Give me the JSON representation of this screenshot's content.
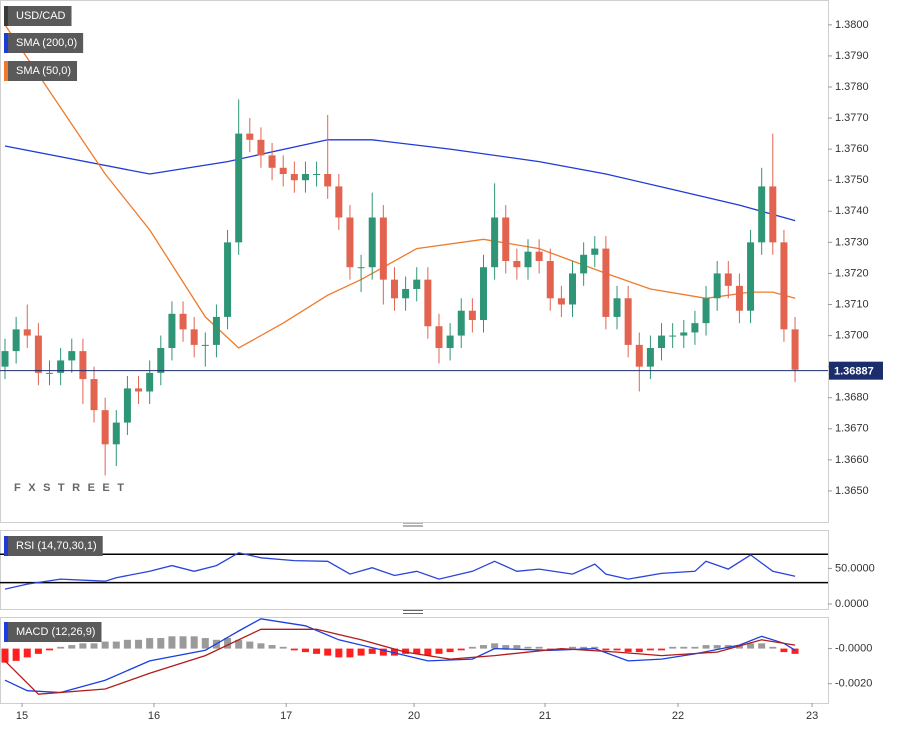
{
  "chart_data": [
    {
      "type": "candlestick",
      "title": "USD/CAD",
      "watermark": "FXSTREET",
      "up_color": "#2e9676",
      "down_color": "#e2634f",
      "xlim": [
        -0.45,
        73.96
      ],
      "ylim": [
        1.364,
        1.3808
      ],
      "yticks": [
        {
          "value": 1.365,
          "label": "1.3650"
        },
        {
          "value": 1.366,
          "label": "1.3660"
        },
        {
          "value": 1.367,
          "label": "1.3670"
        },
        {
          "value": 1.368,
          "label": "1.3680"
        },
        {
          "value": 1.369,
          "label": "1.3690"
        },
        {
          "value": 1.37,
          "label": "1.3700"
        },
        {
          "value": 1.371,
          "label": "1.3710"
        },
        {
          "value": 1.372,
          "label": "1.3720"
        },
        {
          "value": 1.373,
          "label": "1.3730"
        },
        {
          "value": 1.374,
          "label": "1.3740"
        },
        {
          "value": 1.375,
          "label": "1.3750"
        },
        {
          "value": 1.376,
          "label": "1.3760"
        },
        {
          "value": 1.377,
          "label": "1.3770"
        },
        {
          "value": 1.378,
          "label": "1.3780"
        },
        {
          "value": 1.379,
          "label": "1.3790"
        },
        {
          "value": 1.38,
          "label": "1.3800"
        }
      ],
      "last_price": 1.36887,
      "last_price_color": "#1c2d6b",
      "open": [
        1.369,
        1.3695,
        1.3702,
        1.37,
        1.3688,
        1.3688,
        1.3692,
        1.3695,
        1.3686,
        1.3676,
        1.3665,
        1.3672,
        1.3683,
        1.3682,
        1.3688,
        1.3696,
        1.3707,
        1.3702,
        1.3697,
        1.3697,
        1.3706,
        1.373,
        1.3765,
        1.3763,
        1.3758,
        1.3754,
        1.3752,
        1.375,
        1.3752,
        1.3752,
        1.3748,
        1.3738,
        1.3722,
        1.3722,
        1.3738,
        1.3718,
        1.3712,
        1.3715,
        1.3718,
        1.3703,
        1.3696,
        1.37,
        1.3708,
        1.3705,
        1.3722,
        1.3738,
        1.3724,
        1.3722,
        1.3727,
        1.3724,
        1.3712,
        1.371,
        1.372,
        1.3726,
        1.3728,
        1.3706,
        1.3712,
        1.3697,
        1.369,
        1.3696,
        1.37,
        1.37,
        1.3701,
        1.3704,
        1.3712,
        1.372,
        1.3716,
        1.3708,
        1.373,
        1.3748,
        1.373,
        1.3702
      ],
      "high": [
        1.3699,
        1.3706,
        1.371,
        1.3704,
        1.3692,
        1.3696,
        1.3699,
        1.3699,
        1.369,
        1.368,
        1.3676,
        1.3687,
        1.3687,
        1.3692,
        1.37,
        1.3711,
        1.3711,
        1.3706,
        1.3701,
        1.371,
        1.3734,
        1.3776,
        1.377,
        1.3767,
        1.3762,
        1.3758,
        1.3756,
        1.3756,
        1.3756,
        1.3771,
        1.3752,
        1.3742,
        1.3726,
        1.3746,
        1.3742,
        1.3722,
        1.3719,
        1.3722,
        1.3722,
        1.3707,
        1.3704,
        1.3712,
        1.3712,
        1.3726,
        1.3749,
        1.3742,
        1.3728,
        1.3731,
        1.3731,
        1.3728,
        1.3716,
        1.3724,
        1.373,
        1.3732,
        1.3732,
        1.3716,
        1.3716,
        1.3701,
        1.37,
        1.3704,
        1.3704,
        1.3705,
        1.3708,
        1.3716,
        1.3724,
        1.3724,
        1.372,
        1.3734,
        1.3754,
        1.3765,
        1.3734,
        1.3706
      ],
      "low": [
        1.3686,
        1.3691,
        1.3696,
        1.3684,
        1.3684,
        1.3684,
        1.3688,
        1.3678,
        1.3672,
        1.3655,
        1.3658,
        1.3668,
        1.3678,
        1.3678,
        1.3684,
        1.3692,
        1.3698,
        1.3693,
        1.369,
        1.3693,
        1.3702,
        1.3726,
        1.3759,
        1.3754,
        1.375,
        1.3748,
        1.3746,
        1.3746,
        1.3748,
        1.3744,
        1.3734,
        1.3718,
        1.3714,
        1.3718,
        1.371,
        1.3708,
        1.3708,
        1.3711,
        1.3699,
        1.3691,
        1.3692,
        1.3696,
        1.3701,
        1.3701,
        1.3718,
        1.372,
        1.3718,
        1.3718,
        1.372,
        1.3708,
        1.3706,
        1.3706,
        1.3716,
        1.3722,
        1.3702,
        1.3702,
        1.3693,
        1.3682,
        1.3686,
        1.3692,
        1.3696,
        1.3696,
        1.3697,
        1.37,
        1.3708,
        1.3712,
        1.3704,
        1.3704,
        1.3726,
        1.3726,
        1.3698,
        1.3685
      ],
      "close": [
        1.3695,
        1.3702,
        1.37,
        1.3688,
        1.3688,
        1.3692,
        1.3695,
        1.3686,
        1.3676,
        1.3665,
        1.3672,
        1.3683,
        1.3682,
        1.3688,
        1.3696,
        1.3707,
        1.3702,
        1.3697,
        1.3697,
        1.3706,
        1.373,
        1.3765,
        1.3763,
        1.3758,
        1.3754,
        1.3752,
        1.375,
        1.3752,
        1.3752,
        1.3748,
        1.3738,
        1.3722,
        1.3722,
        1.3738,
        1.3718,
        1.3712,
        1.3715,
        1.3718,
        1.3703,
        1.3696,
        1.37,
        1.3708,
        1.3705,
        1.3722,
        1.3738,
        1.3724,
        1.3722,
        1.3727,
        1.3724,
        1.3712,
        1.371,
        1.372,
        1.3726,
        1.3728,
        1.3706,
        1.3712,
        1.3697,
        1.369,
        1.3696,
        1.37,
        1.37,
        1.3701,
        1.3704,
        1.3712,
        1.372,
        1.3716,
        1.3708,
        1.373,
        1.3748,
        1.373,
        1.3702,
        1.3689
      ],
      "series": [
        {
          "name": "SMA (200,0)",
          "color": "#1f3bd6",
          "x": [
            0,
            13,
            20,
            29,
            33,
            40,
            48,
            54,
            60,
            66,
            71
          ],
          "values": [
            1.3761,
            1.3752,
            1.3756,
            1.3763,
            1.3763,
            1.376,
            1.3756,
            1.3752,
            1.3747,
            1.3742,
            1.3737
          ]
        },
        {
          "name": "SMA (50,0)",
          "color": "#ef7a2b",
          "x": [
            0,
            9,
            13,
            18,
            21,
            25,
            29,
            32,
            37,
            43,
            48,
            54,
            58,
            63,
            67,
            69,
            71
          ],
          "values": [
            1.38,
            1.3752,
            1.3734,
            1.3706,
            1.3696,
            1.3704,
            1.3713,
            1.3718,
            1.3728,
            1.3731,
            1.3728,
            1.372,
            1.3715,
            1.3712,
            1.3714,
            1.3714,
            1.3712
          ]
        }
      ]
    },
    {
      "type": "line",
      "title": "RSI (14,70,30,1)",
      "xlim": [
        -0.45,
        73.96
      ],
      "ylim": [
        -7,
        104
      ],
      "yticks": [
        {
          "value": 0,
          "label": "0.0000"
        },
        {
          "value": 50,
          "label": "50.0000"
        }
      ],
      "levels": [
        70,
        30
      ],
      "series": [
        {
          "color": "#2b44d8",
          "x": [
            0,
            2,
            5,
            9,
            10,
            13,
            15,
            17,
            19,
            21,
            23,
            26,
            29,
            31,
            33,
            35,
            37,
            39,
            42,
            44,
            46,
            48,
            51,
            53,
            54,
            56,
            59,
            62,
            63,
            65,
            67,
            69,
            71
          ],
          "values": [
            21,
            28,
            35,
            32,
            37,
            46,
            54,
            46,
            54,
            72,
            65,
            61,
            60,
            42,
            51,
            40,
            46,
            35,
            46,
            60,
            46,
            49,
            42,
            56,
            42,
            35,
            43,
            46,
            60,
            49,
            69,
            46,
            39
          ]
        }
      ]
    },
    {
      "type": "macd",
      "title": "MACD (12,26,9)",
      "xlim": [
        -0.45,
        73.96
      ],
      "ylim": [
        -0.0031,
        0.0018
      ],
      "yticks": [
        {
          "value": -0.002,
          "label": "-0.0020"
        },
        {
          "value": 0,
          "label": "-0.0000"
        }
      ],
      "xticks": [
        {
          "value": 1.53,
          "label": "15"
        },
        {
          "value": 13.39,
          "label": "16"
        },
        {
          "value": 25.27,
          "label": "17"
        },
        {
          "value": 36.76,
          "label": "20"
        },
        {
          "value": 48.53,
          "label": "21"
        },
        {
          "value": 60.48,
          "label": "22"
        },
        {
          "value": 72.53,
          "label": "23"
        }
      ],
      "histogram": {
        "up_color": "#9a9a9a",
        "down_color": "#ff1f1f",
        "values": [
          -0.0008,
          -0.0007,
          -0.0005,
          -0.0003,
          -0.0001,
          0.0001,
          0.0002,
          0.0003,
          0.0003,
          0.0004,
          0.0004,
          0.0005,
          0.0005,
          0.0006,
          0.0006,
          0.0007,
          0.0007,
          0.0007,
          0.0006,
          0.0005,
          0.0006,
          0.0005,
          0.0004,
          0.0003,
          0.0002,
          0.0001,
          -0.0001,
          -0.0002,
          -0.0003,
          -0.0004,
          -0.0005,
          -0.0005,
          -0.0004,
          -0.0003,
          -0.0004,
          -0.0004,
          -0.0003,
          -0.0003,
          -0.0004,
          -0.0003,
          -0.0002,
          -0.0001,
          0.0001,
          0.0002,
          0.0003,
          0.0002,
          0.0002,
          0.0001,
          0.0001,
          -0.0001,
          -0.0001,
          0.0001,
          0.0001,
          0.0001,
          -0.0001,
          -0.0001,
          -0.0002,
          -0.0002,
          -0.0001,
          -0.0001,
          0.0001,
          0.0001,
          0.0001,
          0.0002,
          0.0002,
          0.0002,
          0.0002,
          0.0003,
          0.0003,
          0.0001,
          -0.0002,
          -0.0003
        ]
      },
      "series": [
        {
          "color": "#1a3fe0",
          "x": [
            0,
            2,
            5,
            9,
            13,
            18,
            21,
            23,
            27,
            30,
            34,
            38,
            42,
            44,
            49,
            53,
            56,
            59,
            62,
            66,
            68,
            70,
            71
          ],
          "values": [
            -0.0018,
            -0.0024,
            -0.0025,
            -0.0018,
            -0.0007,
            -0.0001,
            0.001,
            0.0017,
            0.0013,
            0.0005,
            -0.0001,
            -0.0007,
            -0.0006,
            0.0,
            -0.0001,
            0.0,
            -0.0007,
            -0.0006,
            -0.0003,
            0.0002,
            0.0007,
            0.0003,
            -0.0001
          ]
        },
        {
          "color": "#b01c1c",
          "x": [
            0,
            3,
            9,
            13,
            18,
            23,
            28,
            32,
            36,
            40,
            44,
            50,
            55,
            59,
            64,
            68,
            71
          ],
          "values": [
            -0.0007,
            -0.0026,
            -0.0023,
            -0.0014,
            -0.0004,
            0.0011,
            0.0011,
            0.0005,
            -0.0002,
            -0.0006,
            -0.0004,
            0.0,
            -0.0002,
            -0.0004,
            -0.0002,
            0.0005,
            0.0002
          ]
        }
      ]
    }
  ]
}
